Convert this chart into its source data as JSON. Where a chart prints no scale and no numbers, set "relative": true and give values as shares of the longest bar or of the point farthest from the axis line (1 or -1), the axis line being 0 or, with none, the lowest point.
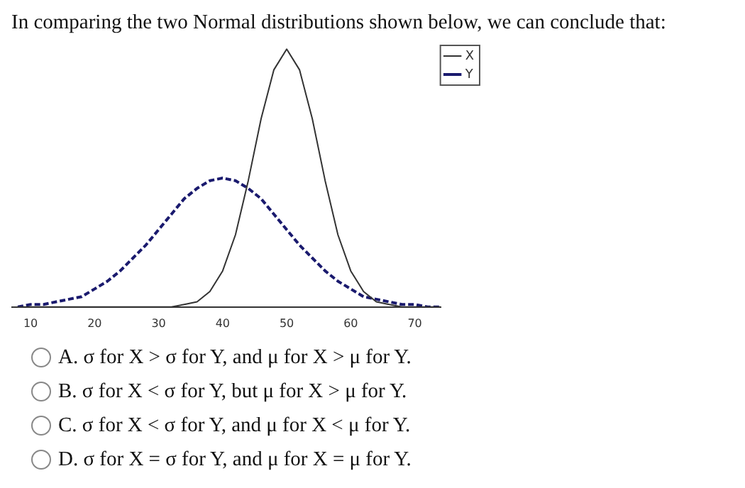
{
  "chart_data": {
    "type": "line",
    "title": "In comparing the two Normal distributions shown below, we can conclude that:",
    "relative": true,
    "x": [
      8,
      10,
      12,
      14,
      16,
      18,
      20,
      22,
      24,
      26,
      28,
      30,
      32,
      34,
      36,
      38,
      40,
      42,
      44,
      46,
      48,
      50,
      52,
      54,
      56,
      58,
      60,
      62,
      64,
      66,
      68,
      70,
      72,
      74
    ],
    "xlim": [
      7,
      74
    ],
    "xticks": [
      10,
      20,
      30,
      40,
      50,
      60,
      70
    ],
    "grid": false,
    "legend": "top right",
    "marker": "none",
    "series": [
      {
        "name": "X",
        "color": "#333333",
        "line_style": "solid",
        "values": [
          0,
          0,
          0,
          0,
          0,
          0,
          0,
          0,
          0,
          0,
          0,
          0,
          0,
          0.01,
          0.02,
          0.06,
          0.14,
          0.28,
          0.49,
          0.73,
          0.92,
          1,
          0.92,
          0.73,
          0.49,
          0.28,
          0.14,
          0.06,
          0.02,
          0.01,
          0,
          0,
          0,
          0
        ]
      },
      {
        "name": "Y",
        "color": "#1a1a6e",
        "line_style": "dashed",
        "values": [
          0,
          0.01,
          0.01,
          0.02,
          0.03,
          0.04,
          0.07,
          0.1,
          0.14,
          0.19,
          0.24,
          0.3,
          0.36,
          0.42,
          0.46,
          0.49,
          0.5,
          0.49,
          0.46,
          0.42,
          0.36,
          0.3,
          0.24,
          0.19,
          0.14,
          0.1,
          0.07,
          0.04,
          0.03,
          0.02,
          0.01,
          0.01,
          0,
          0
        ]
      }
    ],
    "annotations": [
      "A. σ for X > σ for Y, and μ for X > μ for Y.",
      "B. σ for X < σ for Y, but μ for X > μ for Y.",
      "C. σ for X < σ for Y, and μ for X < μ for Y.",
      "D. σ for X = σ for Y, and μ for X = μ for Y."
    ]
  }
}
